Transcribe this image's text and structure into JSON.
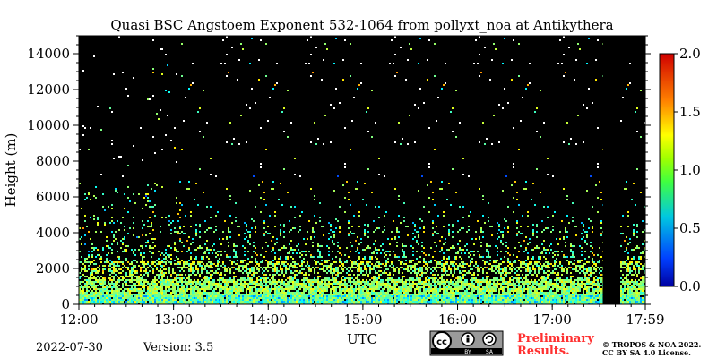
{
  "chart_data": {
    "type": "heatmap",
    "title": "Quasi BSC Angstoem Exponent 532-1064 from pollyxt_noa at Antikythera",
    "xlabel": "UTC",
    "ylabel": "Height (m)",
    "x_ticks": [
      "12:00",
      "13:00",
      "14:00",
      "15:00",
      "16:00",
      "17:00",
      "17:59"
    ],
    "x_range_hours": [
      12.0,
      17.983
    ],
    "y_ticks": [
      0,
      2000,
      4000,
      6000,
      8000,
      10000,
      12000,
      14000
    ],
    "ylim": [
      0,
      15000
    ],
    "colorbar": {
      "min": 0.0,
      "max": 2.0,
      "ticks": [
        "0.0",
        "0.5",
        "1.0",
        "1.5",
        "2.0"
      ],
      "colormap": "jet"
    },
    "background_color": "#000000",
    "data_gap_utc": [
      "17:32",
      "17:43"
    ],
    "layers": [
      {
        "height_range_m": [
          0,
          700
        ],
        "dominant_value": 1.0,
        "description": ""
      },
      {
        "height_range_m": [
          700,
          2500
        ],
        "dominant_value": 1.1
      },
      {
        "height_range_m": [
          2500,
          5000
        ],
        "dominant_value": 1.0
      }
    ]
  },
  "footer": {
    "date": "2022-07-30",
    "version": "Version: 3.5",
    "prelim_line1": "Preliminary",
    "prelim_line2": "Results.",
    "copyright_line1": "© TROPOS & NOA 2022.",
    "copyright_line2": "CC BY SA 4.0 License.",
    "cc_by": "BY",
    "cc_sa": "SA"
  },
  "colors": {
    "plot_background": "#000000",
    "prelim_text": "#ff3030"
  }
}
